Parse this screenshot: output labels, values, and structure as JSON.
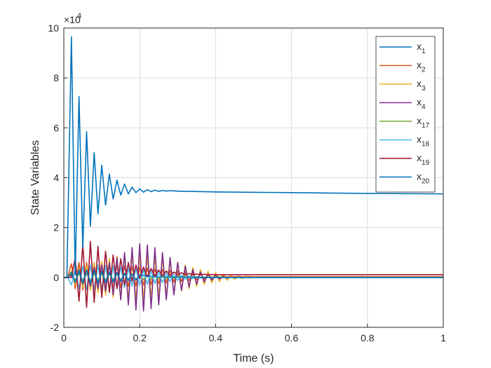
{
  "chart_data": {
    "type": "line",
    "title": "",
    "xlabel": "Time (s)",
    "ylabel": "State Variables",
    "xlim": [
      0,
      1
    ],
    "ylim": [
      -2,
      10
    ],
    "y_exponent_label": "×10",
    "y_exponent_power": "4",
    "y_exponent_value": 10000,
    "xticks": [
      0,
      0.2,
      0.4,
      0.6,
      0.8,
      1
    ],
    "xtick_labels": [
      "0",
      "0.2",
      "0.4",
      "0.6",
      "0.8",
      "1"
    ],
    "yticks": [
      -2,
      0,
      2,
      4,
      6,
      8,
      10
    ],
    "ytick_labels": [
      "-2",
      "0",
      "2",
      "4",
      "6",
      "8",
      "10"
    ],
    "grid": true,
    "legend_position": "top-right",
    "series": [
      {
        "base": "x",
        "sub": "1",
        "color": "#0072BD",
        "x": [
          0,
          0.008,
          0.02,
          0.03,
          0.04,
          0.05,
          0.06,
          0.07,
          0.08,
          0.09,
          0.1,
          0.11,
          0.12,
          0.13,
          0.14,
          0.15,
          0.16,
          0.17,
          0.18,
          0.19,
          0.2,
          0.21,
          0.22,
          0.23,
          0.24,
          0.25,
          0.26,
          0.27,
          0.28,
          0.3,
          0.4,
          0.6,
          0.8,
          1.0
        ],
        "y": [
          0,
          0,
          9.65,
          0.1,
          7.25,
          1.2,
          5.85,
          2.05,
          5.0,
          2.55,
          4.5,
          2.9,
          4.15,
          3.15,
          3.9,
          3.3,
          3.75,
          3.35,
          3.62,
          3.4,
          3.55,
          3.42,
          3.52,
          3.44,
          3.5,
          3.45,
          3.49,
          3.46,
          3.48,
          3.46,
          3.43,
          3.4,
          3.37,
          3.35
        ]
      },
      {
        "base": "x",
        "sub": "2",
        "color": "#D95319",
        "x": [
          0,
          0.01,
          0.02,
          0.03,
          0.04,
          0.05,
          0.06,
          0.07,
          0.08,
          0.09,
          0.1,
          0.11,
          0.12,
          0.13,
          0.14,
          0.15,
          0.16,
          0.17,
          0.18,
          0.19,
          0.2,
          0.21,
          0.22,
          0.23,
          0.24,
          0.25,
          0.26,
          0.27,
          0.28,
          0.29,
          0.3,
          0.31,
          0.32,
          0.33,
          0.34,
          0.35,
          0.36,
          0.37,
          0.38,
          0.39,
          0.4,
          0.41,
          0.42,
          0.43,
          0.44,
          0.45,
          0.46,
          0.47,
          0.48,
          0.49,
          0.5,
          0.6,
          1.0
        ],
        "y": [
          0,
          0,
          0.55,
          -0.45,
          0.6,
          -0.5,
          0.6,
          -0.5,
          0.58,
          -0.48,
          0.55,
          -0.45,
          0.52,
          -0.42,
          0.5,
          -0.4,
          0.47,
          -0.37,
          0.44,
          -0.34,
          0.41,
          -0.31,
          0.38,
          -0.28,
          0.35,
          -0.25,
          0.32,
          -0.22,
          0.29,
          -0.19,
          0.26,
          -0.16,
          0.23,
          -0.13,
          0.2,
          -0.1,
          0.17,
          -0.07,
          0.14,
          -0.04,
          0.11,
          -0.01,
          0.08,
          0.01,
          0.06,
          0.02,
          0.05,
          0.02,
          0.04,
          0.03,
          0.03,
          0.03,
          0.03
        ]
      },
      {
        "base": "x",
        "sub": "3",
        "color": "#EDB120",
        "x": [
          0,
          0.01,
          0.02,
          0.03,
          0.04,
          0.05,
          0.06,
          0.07,
          0.08,
          0.09,
          0.1,
          0.11,
          0.12,
          0.13,
          0.14,
          0.15,
          0.16,
          0.17,
          0.18,
          0.19,
          0.2,
          0.21,
          0.22,
          0.23,
          0.24,
          0.25,
          0.26,
          0.27,
          0.28,
          0.29,
          0.3,
          0.31,
          0.32,
          0.33,
          0.34,
          0.35,
          0.36,
          0.37,
          0.38,
          0.39,
          0.4,
          0.41,
          0.42,
          0.43,
          0.44,
          0.45,
          0.46,
          0.47,
          0.48,
          0.49,
          0.5,
          0.52,
          0.55,
          0.6,
          1.0
        ],
        "y": [
          0,
          0,
          0.25,
          -0.3,
          0.35,
          -0.4,
          0.45,
          -0.5,
          0.55,
          -0.6,
          0.65,
          -0.7,
          0.75,
          -0.8,
          0.85,
          -0.9,
          0.9,
          -0.9,
          0.9,
          -0.9,
          0.9,
          -0.85,
          0.85,
          -0.8,
          0.8,
          -0.75,
          0.75,
          -0.7,
          0.7,
          -0.65,
          0.6,
          -0.55,
          0.5,
          -0.45,
          0.4,
          -0.36,
          0.32,
          -0.28,
          0.25,
          -0.22,
          0.19,
          -0.16,
          0.13,
          -0.11,
          0.09,
          -0.07,
          0.05,
          -0.04,
          0.03,
          -0.02,
          0.01,
          0,
          0,
          0,
          0
        ]
      },
      {
        "base": "x",
        "sub": "4",
        "color": "#7E2F8E",
        "x": [
          0,
          0.01,
          0.02,
          0.03,
          0.04,
          0.05,
          0.06,
          0.07,
          0.08,
          0.09,
          0.1,
          0.11,
          0.12,
          0.13,
          0.14,
          0.15,
          0.16,
          0.17,
          0.18,
          0.19,
          0.2,
          0.21,
          0.22,
          0.23,
          0.24,
          0.25,
          0.26,
          0.27,
          0.28,
          0.29,
          0.3,
          0.31,
          0.32,
          0.33,
          0.34,
          0.35,
          0.36,
          0.37,
          0.38,
          0.39,
          0.4,
          0.41,
          0.42,
          0.43,
          0.44,
          0.45,
          0.46,
          0.47,
          0.48,
          0.49,
          0.5,
          0.55,
          0.6,
          1.0
        ],
        "y": [
          0,
          0,
          0.1,
          -0.15,
          0.2,
          -0.25,
          0.3,
          -0.35,
          0.4,
          -0.45,
          0.5,
          -0.55,
          0.6,
          -0.7,
          0.8,
          -0.9,
          1.0,
          -1.1,
          1.2,
          -1.3,
          1.35,
          -1.35,
          1.3,
          -1.25,
          1.2,
          -1.1,
          1.0,
          -0.9,
          0.8,
          -0.7,
          0.6,
          -0.52,
          0.45,
          -0.38,
          0.32,
          -0.27,
          0.22,
          -0.18,
          0.14,
          -0.11,
          0.08,
          -0.06,
          0.04,
          -0.03,
          0.02,
          -0.01,
          0.01,
          0,
          0,
          0,
          0,
          0,
          0,
          0
        ]
      },
      {
        "base": "x",
        "sub": "17",
        "color": "#77AC30",
        "x": [
          0,
          0.01,
          0.02,
          0.03,
          0.04,
          0.05,
          0.06,
          0.07,
          0.08,
          0.09,
          0.1,
          0.11,
          0.12,
          0.13,
          0.14,
          0.15,
          0.16,
          0.17,
          0.18,
          0.19,
          0.2,
          0.21,
          0.22,
          0.23,
          0.24,
          0.25,
          0.26,
          0.27,
          0.28,
          0.29,
          0.3,
          0.32,
          0.34,
          0.36,
          0.38,
          0.4,
          0.45,
          0.5,
          1.0
        ],
        "y": [
          0,
          0,
          0.15,
          -0.12,
          0.15,
          -0.12,
          0.15,
          -0.12,
          0.14,
          -0.11,
          0.14,
          -0.11,
          0.13,
          -0.1,
          0.13,
          -0.1,
          0.12,
          -0.09,
          0.12,
          -0.09,
          0.11,
          -0.08,
          0.1,
          -0.07,
          0.09,
          -0.06,
          0.08,
          -0.05,
          0.07,
          -0.04,
          0.06,
          0.04,
          0.03,
          0.02,
          0.02,
          0.01,
          0,
          0,
          0
        ]
      },
      {
        "base": "x",
        "sub": "18",
        "color": "#4DBEEE",
        "x": [
          0,
          0.01,
          0.02,
          0.03,
          0.04,
          0.05,
          0.06,
          0.07,
          0.08,
          0.09,
          0.1,
          0.11,
          0.12,
          0.13,
          0.14,
          0.15,
          0.16,
          0.17,
          0.18,
          0.19,
          0.2,
          0.21,
          0.22,
          0.23,
          0.24,
          0.25,
          0.26,
          0.27,
          0.28,
          0.29,
          0.3,
          0.31,
          0.32,
          0.33,
          0.34,
          0.35,
          0.36,
          0.37,
          0.38,
          0.4,
          0.45,
          0.5,
          1.0
        ],
        "y": [
          0,
          0,
          -0.3,
          0.35,
          -0.45,
          0.45,
          -0.5,
          0.5,
          -0.5,
          0.5,
          -0.48,
          0.48,
          -0.46,
          0.45,
          -0.44,
          0.42,
          -0.4,
          0.38,
          -0.36,
          0.34,
          -0.32,
          0.3,
          -0.28,
          0.26,
          -0.24,
          0.22,
          -0.2,
          0.18,
          -0.16,
          0.14,
          -0.12,
          0.1,
          -0.08,
          0.07,
          -0.05,
          0.04,
          -0.03,
          0.02,
          -0.01,
          0,
          0,
          0,
          0
        ]
      },
      {
        "base": "x",
        "sub": "19",
        "color": "#A2142F",
        "x": [
          0,
          0.01,
          0.02,
          0.03,
          0.04,
          0.05,
          0.06,
          0.07,
          0.08,
          0.09,
          0.1,
          0.11,
          0.12,
          0.13,
          0.14,
          0.15,
          0.16,
          0.17,
          0.18,
          0.19,
          0.2,
          0.21,
          0.22,
          0.23,
          0.24,
          0.25,
          0.26,
          0.27,
          0.28,
          0.29,
          0.3,
          0.31,
          0.32,
          0.33,
          0.34,
          0.35,
          0.36,
          0.37,
          0.38,
          0.39,
          0.4,
          0.42,
          0.45,
          0.5,
          1.0
        ],
        "y": [
          0,
          0,
          0,
          0.8,
          -0.95,
          1.35,
          -1.2,
          1.45,
          -1.0,
          1.25,
          -0.8,
          1.05,
          -0.6,
          0.9,
          -0.45,
          0.75,
          -0.3,
          0.6,
          -0.15,
          0.5,
          -0.05,
          0.42,
          0.02,
          0.36,
          0.06,
          0.3,
          0.08,
          0.26,
          0.09,
          0.22,
          0.1,
          0.19,
          0.1,
          0.16,
          0.1,
          0.14,
          0.1,
          0.13,
          0.1,
          0.12,
          0.11,
          0.11,
          0.11,
          0.11,
          0.11
        ]
      },
      {
        "base": "x",
        "sub": "20",
        "color": "#0072BD",
        "x": [
          0,
          0.01,
          0.02,
          0.03,
          0.04,
          0.05,
          0.06,
          0.07,
          0.08,
          0.09,
          0.1,
          0.11,
          0.12,
          0.13,
          0.14,
          0.15,
          0.16,
          0.17,
          0.18,
          0.19,
          0.2,
          0.22,
          0.25,
          0.3,
          0.4,
          0.5,
          1.0
        ],
        "y": [
          0,
          0,
          0.2,
          -0.2,
          0.3,
          -0.25,
          0.3,
          -0.25,
          0.28,
          -0.22,
          0.25,
          -0.2,
          0.22,
          -0.18,
          0.2,
          -0.15,
          0.17,
          -0.12,
          0.14,
          -0.1,
          0.1,
          0.05,
          0.02,
          0.01,
          0,
          0,
          0
        ]
      }
    ]
  }
}
